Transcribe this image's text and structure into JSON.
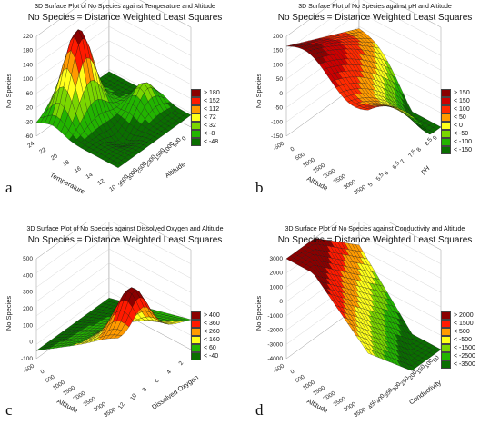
{
  "chart_data": [
    {
      "id": "a",
      "type": "surface3d",
      "title": "3D Surface Plot of No Species against Temperature and Altitude",
      "subtitle": "No Species = Distance Weighted Least Squares",
      "panel_label": "a",
      "zlabel": "No Species",
      "xlabel": "Temperature",
      "ylabel": "Altitude",
      "zlim": [
        -60,
        220
      ],
      "zticks": [
        "220",
        "180",
        "140",
        "100",
        "60",
        "20",
        "-20",
        "-60"
      ],
      "xticks": [
        "24",
        "22",
        "20",
        "18",
        "16",
        "14",
        "12",
        "10"
      ],
      "yticks": [
        "3500",
        "3000",
        "2500",
        "2000",
        "1500",
        "1000",
        "500",
        "0",
        "-500"
      ],
      "legend": [
        "> 180",
        "< 152",
        "< 112",
        "< 72",
        "< 32",
        "< -8",
        "< -48"
      ],
      "colors": [
        "#8b0000",
        "#ff1a00",
        "#ff9a00",
        "#ffff1a",
        "#7ad600",
        "#22b400",
        "#0a6e00"
      ]
    },
    {
      "id": "b",
      "type": "surface3d",
      "title": "3D Surface Plot of No Species against pH and Altitude",
      "subtitle": "No Species = Distance Weighted Least Squares",
      "panel_label": "b",
      "zlabel": "No Species",
      "xlabel": "Altitude",
      "ylabel": "pH",
      "zlim": [
        -150,
        200
      ],
      "zticks": [
        "200",
        "150",
        "100",
        "50",
        "0",
        "-50",
        "-100",
        "-150"
      ],
      "xticks": [
        "-500",
        "0",
        "500",
        "1000",
        "1500",
        "2000",
        "2500",
        "3000",
        "3500"
      ],
      "yticks": [
        "5",
        "5.5",
        "6",
        "6.5",
        "7",
        "7.5",
        "8",
        "8.5",
        "9",
        "9.5"
      ],
      "legend": [
        "> 150",
        "< 150",
        "< 100",
        "< 50",
        "< 0",
        "< -50",
        "< -100",
        "< -150"
      ],
      "colors": [
        "#8b0000",
        "#cc0000",
        "#ff2a00",
        "#ff9a00",
        "#ffff1a",
        "#7ad600",
        "#22b400",
        "#0a6e00"
      ]
    },
    {
      "id": "c",
      "type": "surface3d",
      "title": "3D Surface Plot of No Species against Dissolved Oxygen and Altitude",
      "subtitle": "No Species = Distance Weighted Least Squares",
      "panel_label": "c",
      "zlabel": "No Species",
      "xlabel": "Altitude",
      "ylabel": "Dissolved Oxygen",
      "zlim": [
        -100,
        500
      ],
      "zticks": [
        "500",
        "400",
        "300",
        "200",
        "100",
        "0",
        "-100"
      ],
      "xticks": [
        "-500",
        "0",
        "500",
        "1000",
        "1500",
        "2000",
        "2500",
        "3000",
        "3500"
      ],
      "yticks": [
        "12",
        "10",
        "8",
        "6",
        "4",
        "2",
        "0"
      ],
      "legend": [
        "> 400",
        "< 360",
        "< 260",
        "< 160",
        "< 60",
        "< -40"
      ],
      "colors": [
        "#8b0000",
        "#ff1a00",
        "#ff9a00",
        "#ffff1a",
        "#22b400",
        "#0a6e00"
      ]
    },
    {
      "id": "d",
      "type": "surface3d",
      "title": "3D Surface Plot of No Species against Conductivity and Altitude",
      "subtitle": "No Species = Distance Weighted Least Squares",
      "panel_label": "d",
      "zlabel": "No Species",
      "xlabel": "Altitude",
      "ylabel": "Conductivity",
      "zlim": [
        -4000,
        3000
      ],
      "zticks": [
        "3000",
        "2000",
        "1000",
        "0",
        "-1000",
        "-2000",
        "-3000",
        "-4000"
      ],
      "xticks": [
        "-500",
        "0",
        "500",
        "1000",
        "1500",
        "2000",
        "2500",
        "3000",
        "3500"
      ],
      "yticks": [
        "450",
        "400",
        "350",
        "300",
        "250",
        "200",
        "150",
        "100",
        "50",
        "0"
      ],
      "legend": [
        "> 2000",
        "< 1500",
        "< 500",
        "< -500",
        "< -1500",
        "< -2500",
        "< -3500"
      ],
      "colors": [
        "#8b0000",
        "#ff1a00",
        "#ff9a00",
        "#ffff1a",
        "#7ad600",
        "#22b400",
        "#0a6e00"
      ]
    }
  ]
}
